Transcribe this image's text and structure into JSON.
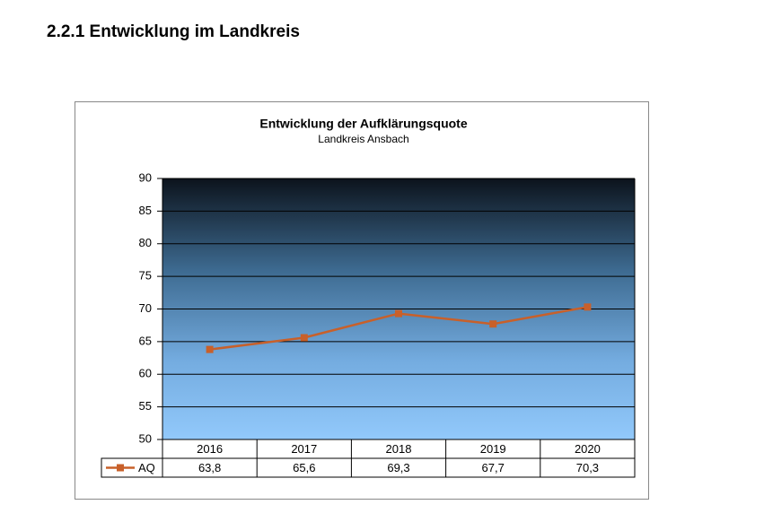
{
  "heading": "2.2.1 Entwicklung im Landkreis",
  "chart_data": {
    "type": "line",
    "title": "Entwicklung der Aufklärungsquote",
    "subtitle": "Landkreis Ansbach",
    "categories": [
      "2016",
      "2017",
      "2018",
      "2019",
      "2020"
    ],
    "series": [
      {
        "name": "AQ",
        "color": "#c8602a",
        "values": [
          63.8,
          65.6,
          69.3,
          67.7,
          70.3
        ],
        "value_labels": [
          "63,8",
          "65,6",
          "69,3",
          "67,7",
          "70,3"
        ]
      }
    ],
    "ylim": [
      50,
      90
    ],
    "yticks": [
      50,
      55,
      60,
      65,
      70,
      75,
      80,
      85,
      90
    ],
    "grid": true
  }
}
